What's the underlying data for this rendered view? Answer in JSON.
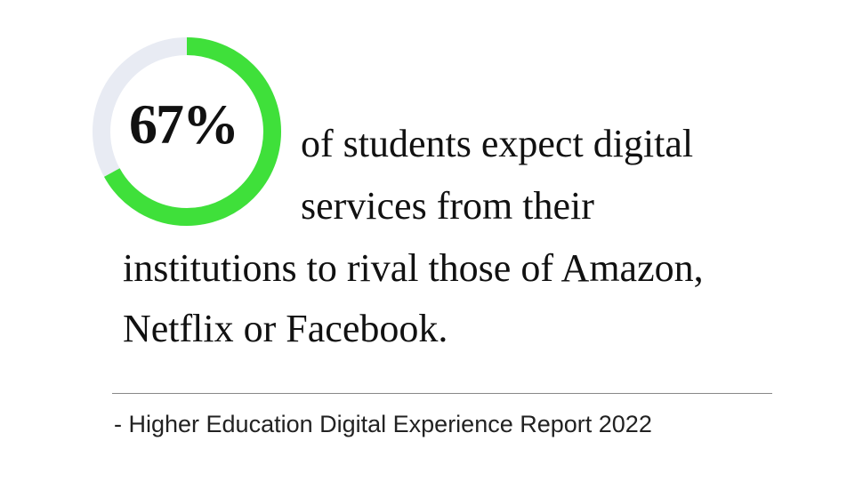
{
  "chart_data": {
    "type": "pie",
    "value": 67,
    "unit": "%",
    "label": "67%",
    "max": 100,
    "colors": {
      "filled": "#3fe03a",
      "remainder": "#e8ebf3"
    }
  },
  "statement": {
    "lines": [
      "of students expect digital",
      "services from their",
      "institutions to rival those of Amazon,",
      "Netflix or Facebook."
    ]
  },
  "source": "- Higher Education Digital Experience Report 2022"
}
